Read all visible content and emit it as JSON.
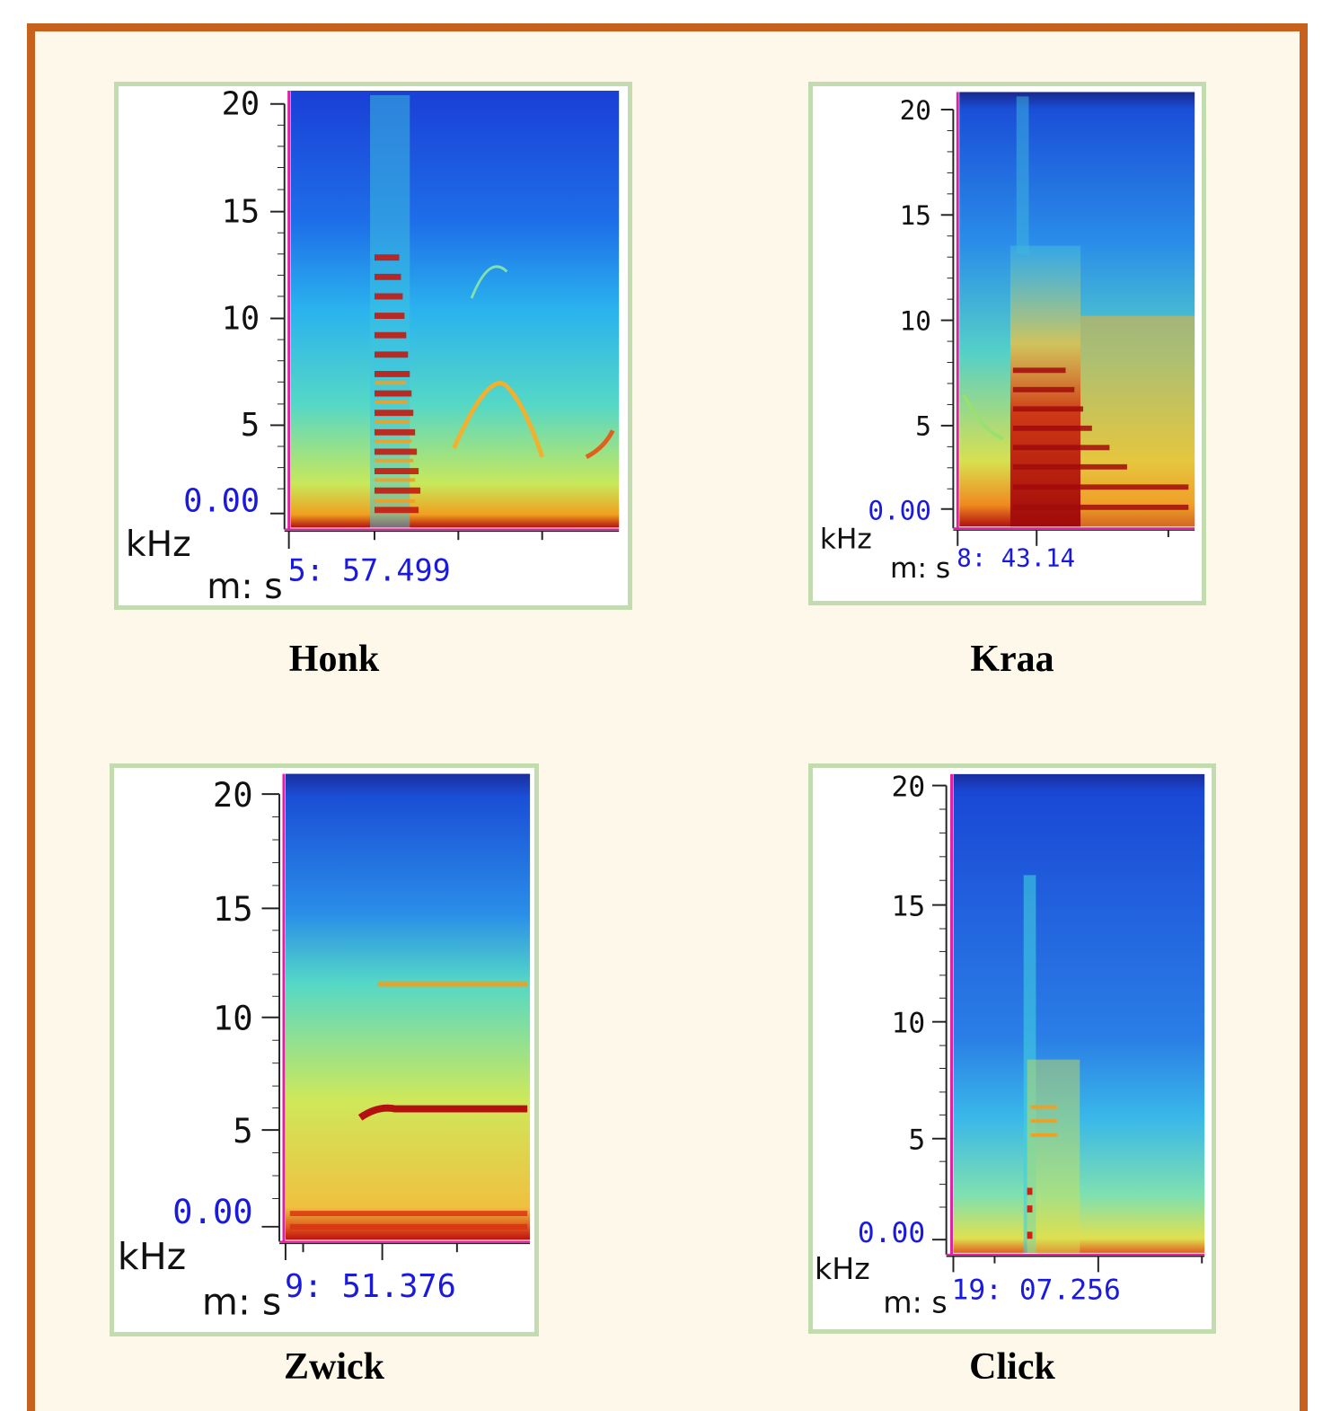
{
  "colors": {
    "frame_border": "#c8601e",
    "background": "#fdf8ea",
    "panel_border": "#c2dcb0",
    "axis_start_marker": "#e020a0",
    "zero_and_time_labels": "#1a1adf"
  },
  "chart_data": [
    {
      "type": "heatmap",
      "name": "Honk",
      "ylabel": "kHz",
      "xlabel": "m: s",
      "y_ticks": [
        "20",
        "15",
        "10",
        "5"
      ],
      "y_zero_label": "0.00",
      "ylim": [
        0,
        20
      ],
      "x_start_label": "5: 57.499"
    },
    {
      "type": "heatmap",
      "name": "Kraa",
      "ylabel": "kHz",
      "xlabel": "m: s",
      "y_ticks": [
        "20",
        "15",
        "10",
        "5"
      ],
      "y_zero_label": "0.00",
      "ylim": [
        0,
        20
      ],
      "x_start_label": "8: 43.14"
    },
    {
      "type": "heatmap",
      "name": "Zwick",
      "ylabel": "kHz",
      "xlabel": "m: s",
      "y_ticks": [
        "20",
        "15",
        "10",
        "5"
      ],
      "y_zero_label": "0.00",
      "ylim": [
        0,
        20
      ],
      "x_start_label": "9: 51.376"
    },
    {
      "type": "heatmap",
      "name": "Click",
      "ylabel": "kHz",
      "xlabel": "m: s",
      "y_ticks": [
        "20",
        "15",
        "10",
        "5"
      ],
      "y_zero_label": "0.00",
      "ylim": [
        0,
        20
      ],
      "x_start_label": "19: 07.256"
    }
  ]
}
